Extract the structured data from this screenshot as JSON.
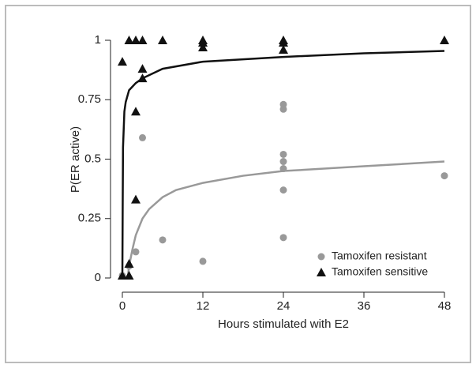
{
  "chart_data": {
    "type": "scatter",
    "xlabel": "Hours stimulated with E2",
    "ylabel": "P(ER active)",
    "xlim": [
      0,
      48
    ],
    "ylim": [
      0,
      1
    ],
    "xticks": [
      0,
      12,
      24,
      36,
      48
    ],
    "yticks": [
      0,
      0.25,
      0.5,
      0.75,
      1
    ],
    "legend": "lower right",
    "series": [
      {
        "name": "Tamoxifen resistant",
        "color": "#999999",
        "marker": "circle",
        "x": [
          0,
          1,
          2,
          3,
          6,
          12,
          24,
          24,
          24,
          24,
          24,
          24,
          24,
          48
        ],
        "values": [
          0.01,
          0.05,
          0.11,
          0.59,
          0.16,
          0.07,
          0.73,
          0.71,
          0.52,
          0.49,
          0.46,
          0.37,
          0.17,
          0.43
        ]
      },
      {
        "name": "Tamoxifen sensitive",
        "color": "#111111",
        "marker": "triangle",
        "x": [
          0,
          0,
          1,
          1,
          1,
          2,
          2,
          2,
          3,
          3,
          3,
          6,
          12,
          12,
          12,
          24,
          24,
          24,
          48
        ],
        "values": [
          0.01,
          0.91,
          1,
          0.01,
          0.06,
          1,
          0.7,
          0.33,
          1,
          0.88,
          0.84,
          1,
          1,
          0.99,
          0.97,
          1,
          0.99,
          0.96,
          1
        ]
      }
    ],
    "curves": [
      {
        "color": "#999999",
        "x": [
          0.8,
          1,
          1.5,
          2,
          3,
          4,
          6,
          8,
          12,
          18,
          24,
          36,
          48
        ],
        "values": [
          0,
          0.05,
          0.12,
          0.18,
          0.25,
          0.29,
          0.34,
          0.37,
          0.4,
          0.43,
          0.45,
          0.47,
          0.49
        ]
      },
      {
        "color": "#111111",
        "x": [
          0,
          0.05,
          0.1,
          0.3,
          0.5,
          1,
          2,
          3,
          6,
          12,
          24,
          36,
          48
        ],
        "values": [
          0,
          0.3,
          0.55,
          0.7,
          0.74,
          0.79,
          0.82,
          0.84,
          0.88,
          0.91,
          0.93,
          0.945,
          0.955
        ]
      }
    ]
  }
}
